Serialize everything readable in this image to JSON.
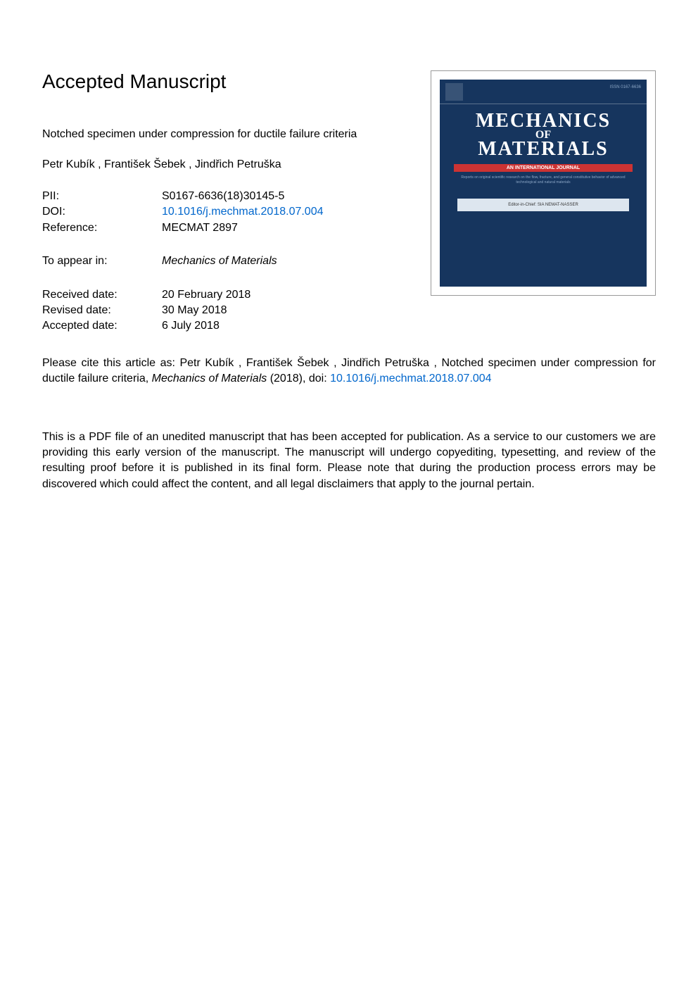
{
  "header": {
    "title": "Accepted Manuscript"
  },
  "paper": {
    "title": "Notched specimen under compression for ductile failure criteria",
    "authors": " Petr Kubík ,  František Šebek ,  Jindřich Petruška"
  },
  "metadata": {
    "pii_label": "PII:",
    "pii_value": "S0167-6636(18)30145-5",
    "doi_label": "DOI:",
    "doi_value": "10.1016/j.mechmat.2018.07.004",
    "reference_label": "Reference:",
    "reference_value": "MECMAT 2897",
    "appear_label": "To appear in:",
    "appear_value": "Mechanics of Materials",
    "received_label": "Received date:",
    "received_value": "20 February 2018",
    "revised_label": "Revised date:",
    "revised_value": "30 May 2018",
    "accepted_label": "Accepted date:",
    "accepted_value": "6 July 2018"
  },
  "citation": {
    "prefix": "Please cite this article as: Petr Kubík , František Šebek , Jindřich Petruška , Notched specimen under compression for ductile failure criteria, ",
    "journal": "Mechanics of Materials",
    "suffix": " (2018), doi: ",
    "doi": "10.1016/j.mechmat.2018.07.004"
  },
  "disclaimer": {
    "text": "This is a PDF file of an unedited manuscript that has been accepted for publication. As a service to our customers we are providing this early version of the manuscript. The manuscript will undergo copyediting, typesetting, and review of the resulting proof before it is published in its final form. Please note that during the production process errors may be discovered which could affect the content, and all legal disclaimers that apply to the journal pertain."
  },
  "cover": {
    "issn": "ISSN 0167-6636",
    "name_line1": "MECHANICS",
    "name_of": "OF",
    "name_line2": "MATERIALS",
    "subtitle": "AN INTERNATIONAL JOURNAL",
    "description": "Reports on original scientific research on the flow, fracture, and general constitutive behavior of advanced technological and natural materials",
    "editor": "Editor-in-Chief: SIA NEMAT-NASSER",
    "colors": {
      "background": "#16355e",
      "subtitle_bg": "#cc3333",
      "text_light": "#8aa5c4",
      "editor_bg": "#dde6ef"
    }
  }
}
